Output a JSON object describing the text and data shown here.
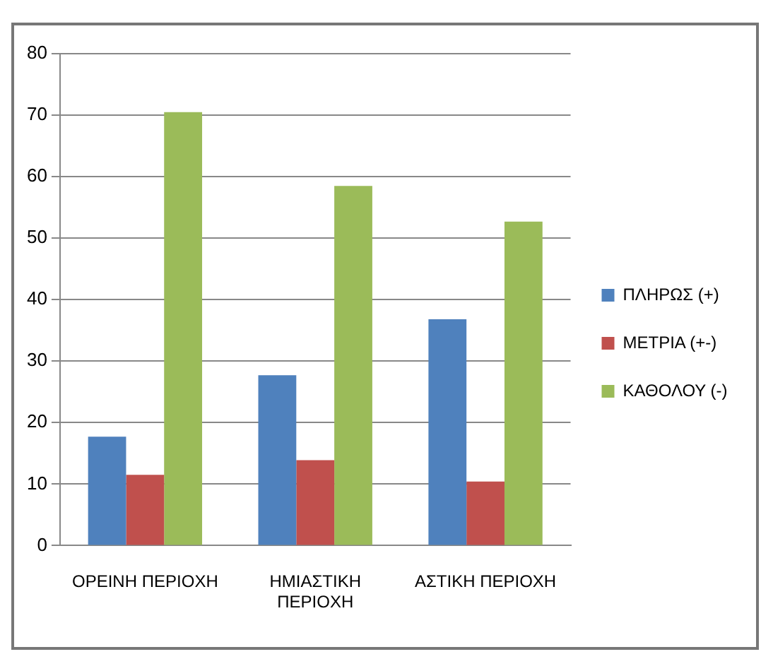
{
  "chart_data": {
    "type": "bar",
    "categories": [
      "ΟΡΕΙΝΗ ΠΕΡΙΟΧΗ",
      "ΗΜΙΑΣΤΙΚΗ ΠΕΡΙΟΧΗ",
      "ΑΣΤΙΚΗ ΠΕΡΙΟΧΗ"
    ],
    "series": [
      {
        "name": "ΠΛΗΡΩΣ (+)",
        "color": "#4f81bd",
        "values": [
          17.7,
          27.7,
          36.8
        ]
      },
      {
        "name": "ΜΕΤΡΙΑ (+-)",
        "color": "#c0504d",
        "values": [
          11.5,
          13.9,
          10.4
        ]
      },
      {
        "name": "ΚΑΘΟΛΟΥ (-)",
        "color": "#9bbb59",
        "values": [
          70.5,
          58.5,
          52.7
        ]
      }
    ],
    "ylim": [
      0,
      80
    ],
    "yticks": [
      0,
      10,
      20,
      30,
      40,
      50,
      60,
      70,
      80
    ],
    "grid": "y",
    "legend": "right"
  }
}
